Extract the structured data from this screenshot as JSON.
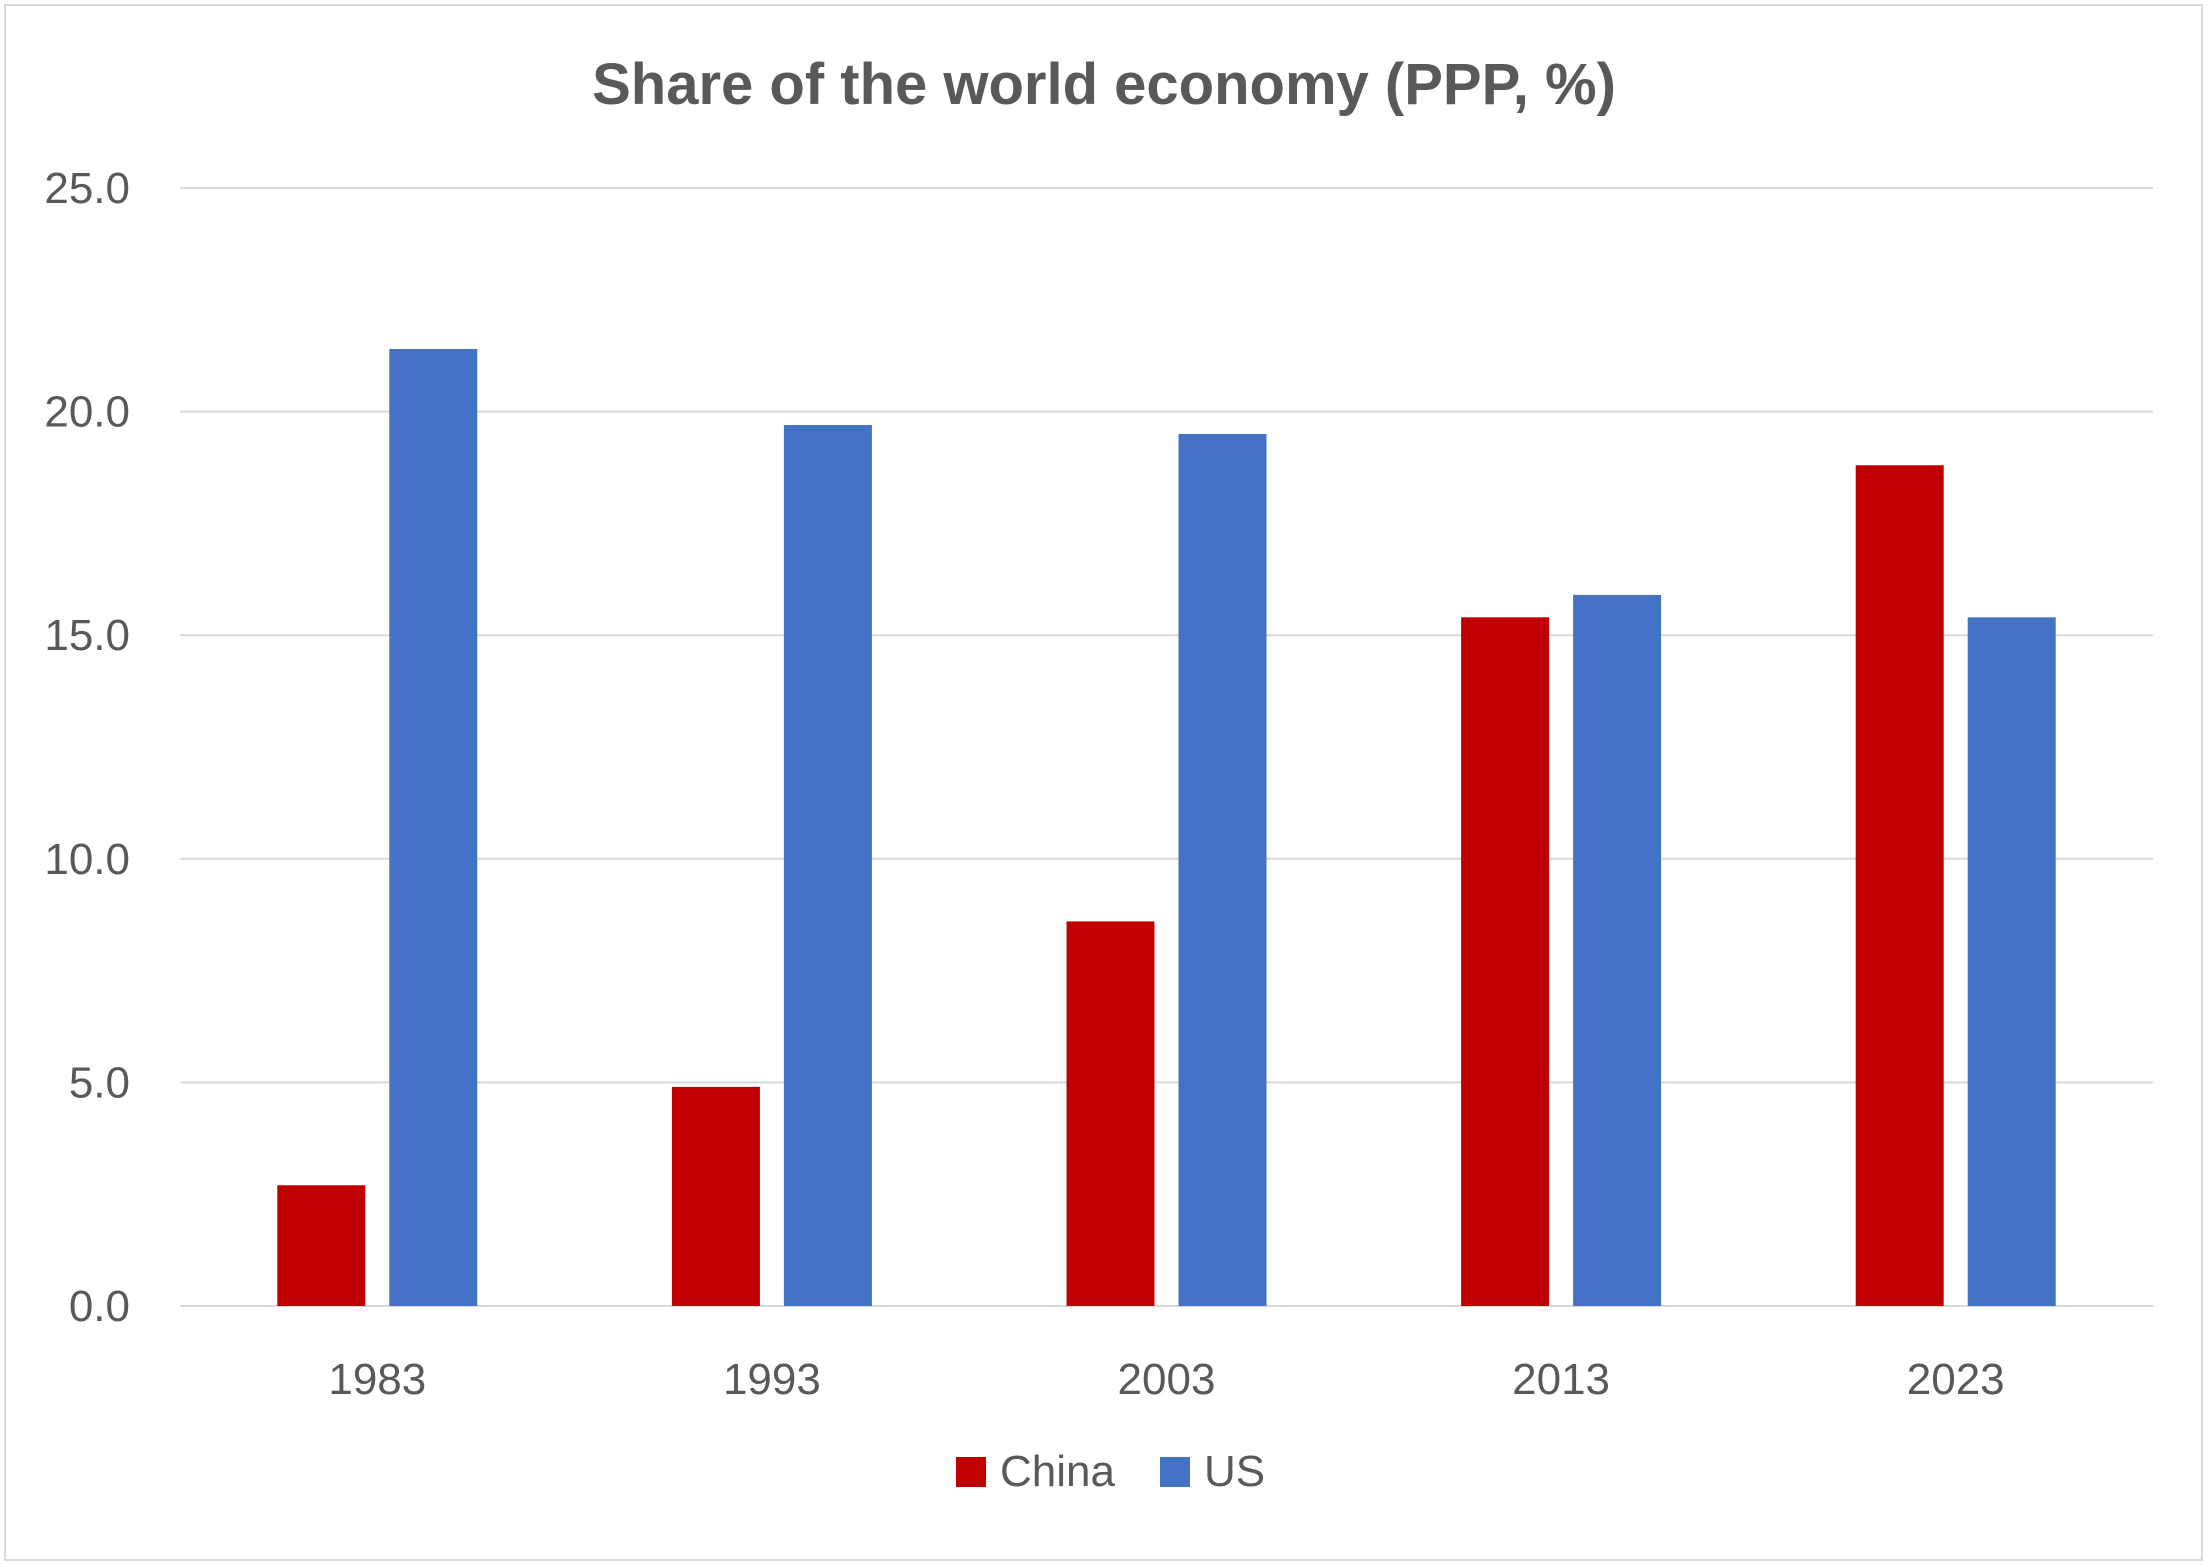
{
  "chart_data": {
    "type": "bar",
    "title": "Share of the world economy (PPP, %)",
    "xlabel": "",
    "ylabel": "",
    "categories": [
      "1983",
      "1993",
      "2003",
      "2013",
      "2023"
    ],
    "series": [
      {
        "name": "China",
        "color": "#c00000",
        "values": [
          2.7,
          4.9,
          8.6,
          15.4,
          18.8
        ]
      },
      {
        "name": "US",
        "color": "#4472c4",
        "values": [
          21.4,
          19.7,
          19.5,
          15.9,
          15.4
        ]
      }
    ],
    "ylim": [
      0,
      25
    ],
    "yticks": [
      "0.0",
      "5.0",
      "10.0",
      "15.0",
      "20.0",
      "25.0"
    ],
    "grid": true,
    "legend": "bottom-center"
  }
}
